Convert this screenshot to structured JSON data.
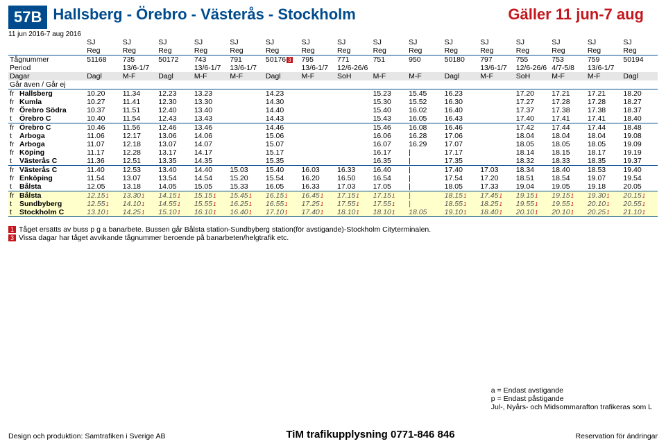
{
  "header": {
    "badge": "57B",
    "title": "Hallsberg - Örebro - Västerås - Stockholm",
    "validity": "Gäller 11 jun-7 aug",
    "date_range": "11 jun 2016-7 aug 2016"
  },
  "row_operator_label": "",
  "operator": "SJ",
  "row_reg_label": "",
  "reg": "Reg",
  "labels": {
    "tagnummer": "Tågnummer",
    "period": "Period",
    "dagar": "Dagar",
    "gar": "Går även / Går ej"
  },
  "tagnummer": [
    "51168",
    "735",
    "50172",
    "743",
    "791",
    "50176",
    "795",
    "771",
    "751",
    "950",
    "50180",
    "797",
    "755",
    "753",
    "759",
    "50194"
  ],
  "tagnummer_note": {
    "5": "3"
  },
  "period": [
    "",
    "13/6-1/7",
    "",
    "13/6-1/7",
    "13/6-1/7",
    "",
    "13/6-1/7",
    "12/6-26/6",
    "",
    "",
    "",
    "13/6-1/7",
    "12/6-26/6",
    "4/7-5/8",
    "13/6-1/7",
    ""
  ],
  "dagar": [
    "Dagl",
    "M-F",
    "Dagl",
    "M-F",
    "M-F",
    "Dagl",
    "M-F",
    "SoH",
    "M-F",
    "M-F",
    "Dagl",
    "M-F",
    "SoH",
    "M-F",
    "M-F",
    "Dagl"
  ],
  "stops": [
    {
      "p": "fr",
      "n": "Hallsberg",
      "t": [
        "10.20",
        "11.34",
        "12.23",
        "13.23",
        "",
        "14.23",
        "",
        "",
        "15.23",
        "15.45",
        "16.23",
        "",
        "17.20",
        "17.21",
        "17.21",
        "18.20"
      ]
    },
    {
      "p": "fr",
      "n": "Kumla",
      "t": [
        "10.27",
        "11.41",
        "12.30",
        "13.30",
        "",
        "14.30",
        "",
        "",
        "15.30",
        "15.52",
        "16.30",
        "",
        "17.27",
        "17.28",
        "17.28",
        "18.27"
      ]
    },
    {
      "p": "fr",
      "n": "Örebro Södra",
      "t": [
        "10.37",
        "11.51",
        "12.40",
        "13.40",
        "",
        "14.40",
        "",
        "",
        "15.40",
        "16.02",
        "16.40",
        "",
        "17.37",
        "17.38",
        "17.38",
        "18.37"
      ]
    },
    {
      "p": "t",
      "n": "Örebro C",
      "t": [
        "10.40",
        "11.54",
        "12.43",
        "13.43",
        "",
        "14.43",
        "",
        "",
        "15.43",
        "16.05",
        "16.43",
        "",
        "17.40",
        "17.41",
        "17.41",
        "18.40"
      ],
      "line": "bottom"
    },
    {
      "p": "fr",
      "n": "Örebro C",
      "t": [
        "10.46",
        "11.56",
        "12.46",
        "13.46",
        "",
        "14.46",
        "",
        "",
        "15.46",
        "16.08",
        "16.46",
        "",
        "17.42",
        "17.44",
        "17.44",
        "18.48"
      ]
    },
    {
      "p": "t",
      "n": "Arboga",
      "t": [
        "11.06",
        "12.17",
        "13.06",
        "14.06",
        "",
        "15.06",
        "",
        "",
        "16.06",
        "16.28",
        "17.06",
        "",
        "18.04",
        "18.04",
        "18.04",
        "19.08"
      ]
    },
    {
      "p": "fr",
      "n": "Arboga",
      "t": [
        "11.07",
        "12.18",
        "13.07",
        "14.07",
        "",
        "15.07",
        "",
        "",
        "16.07",
        "16.29",
        "17.07",
        "",
        "18.05",
        "18.05",
        "18.05",
        "19.09"
      ]
    },
    {
      "p": "fr",
      "n": "Köping",
      "t": [
        "11.17",
        "12.28",
        "13.17",
        "14.17",
        "",
        "15.17",
        "",
        "",
        "16.17",
        "|",
        "17.17",
        "",
        "18.14",
        "18.15",
        "18.17",
        "19.19"
      ]
    },
    {
      "p": "t",
      "n": "Västerås C",
      "t": [
        "11.36",
        "12.51",
        "13.35",
        "14.35",
        "",
        "15.35",
        "",
        "",
        "16.35",
        "|",
        "17.35",
        "",
        "18.32",
        "18.33",
        "18.35",
        "19.37"
      ],
      "line": "bottom"
    },
    {
      "p": "fr",
      "n": "Västerås C",
      "t": [
        "11.40",
        "12.53",
        "13.40",
        "14.40",
        "15.03",
        "15.40",
        "16.03",
        "16.33",
        "16.40",
        "|",
        "17.40",
        "17.03",
        "18.34",
        "18.40",
        "18.53",
        "19.40"
      ]
    },
    {
      "p": "fr",
      "n": "Enköping",
      "t": [
        "11.54",
        "13.07",
        "13.54",
        "14.54",
        "15.20",
        "15.54",
        "16.20",
        "16.50",
        "16.54",
        "|",
        "17.54",
        "17.20",
        "18.51",
        "18.54",
        "19.07",
        "19.54"
      ]
    },
    {
      "p": "t",
      "n": "Bålsta",
      "t": [
        "12.05",
        "13.18",
        "14.05",
        "15.05",
        "15.33",
        "16.05",
        "16.33",
        "17.03",
        "17.05",
        "|",
        "18.05",
        "17.33",
        "19.04",
        "19.05",
        "19.18",
        "20.05"
      ],
      "line": "bottom"
    },
    {
      "p": "fr",
      "n": "Bålsta",
      "hl": true,
      "t": [
        "12.15",
        "13.30",
        "14.15",
        "15.15",
        "15.45",
        "16.15",
        "16.45",
        "17.15",
        "17.15",
        "|",
        "18.15",
        "17.45",
        "19.15",
        "19.15",
        "19.30",
        "20.15"
      ],
      "s": [
        "1",
        "1",
        "1",
        "1",
        "1",
        "1",
        "1",
        "1",
        "1",
        "",
        "1",
        "1",
        "1",
        "1",
        "1",
        "1"
      ]
    },
    {
      "p": "t",
      "n": "Sundbyberg",
      "hl": true,
      "t": [
        "12.55",
        "14.10",
        "14.55",
        "15.55",
        "16.25",
        "16.55",
        "17.25",
        "17.55",
        "17.55",
        "|",
        "18.55",
        "18.25",
        "19.55",
        "19.55",
        "20.10",
        "20.55"
      ],
      "s": [
        "1",
        "1",
        "1",
        "1",
        "1",
        "1",
        "1",
        "1",
        "1",
        "",
        "1",
        "1",
        "1",
        "1",
        "1",
        "1"
      ]
    },
    {
      "p": "t",
      "n": "Stockholm C",
      "hl": true,
      "t": [
        "13.10",
        "14.25",
        "15.10",
        "16.10",
        "16.40",
        "17.10",
        "17.40",
        "18.10",
        "18.10",
        "18.05",
        "19.10",
        "18.40",
        "20.10",
        "20.10",
        "20.25",
        "21.10"
      ],
      "s": [
        "1",
        "1",
        "1",
        "1",
        "1",
        "1",
        "1",
        "1",
        "1",
        "",
        "1",
        "1",
        "1",
        "1",
        "1",
        "1"
      ],
      "line": "bottom"
    }
  ],
  "footnotes": [
    {
      "n": "1",
      "t": "Tåget ersätts av buss p g a banarbete. Bussen går Bålsta station-Sundbyberg station(för avstigande)-Stockholm Cityterminalen."
    },
    {
      "n": "3",
      "t": "Vissa dagar har tåget avvikande tågnummer beroende på banarbeten/helgtrafik etc."
    }
  ],
  "legend": [
    "a = Endast avstigande",
    "p = Endast påstigande",
    "Jul-, Nyårs- och Midsommarafton trafikeras som L"
  ],
  "footer": {
    "left": "Design och produktion: Samtrafiken i Sverige AB",
    "center": "TiM trafikupplysning 0771-846 846",
    "right": "Reservation för ändringar"
  }
}
